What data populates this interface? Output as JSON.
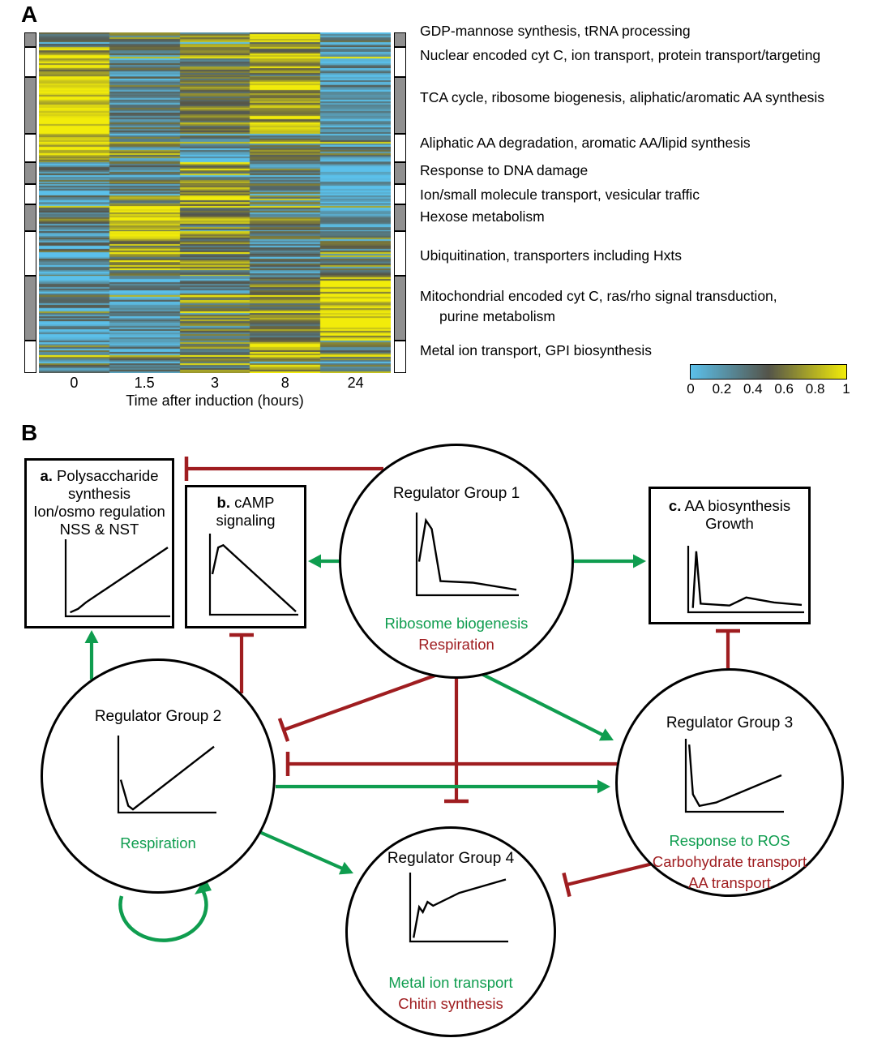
{
  "colors": {
    "activation": "#0f9d4f",
    "inhibition": "#9f1d20",
    "heat_low": "#5bc0ea",
    "heat_mid": "#54544a",
    "heat_high": "#f2ec0a",
    "sidebar_gray": "#909090"
  },
  "panelA": {
    "label": "A",
    "xlabel": "Time after induction (hours)",
    "time_ticks": [
      "0",
      "1.5",
      "3",
      "8",
      "24"
    ],
    "colorbar_ticks": [
      "0",
      "0.2",
      "0.4",
      "0.6",
      "0.8",
      "1"
    ],
    "clusters": [
      {
        "label": "GDP-mannose synthesis, tRNA processing",
        "shade": "gray",
        "profile": [
          0.45,
          0.55,
          0.62,
          0.8,
          0.15
        ],
        "noise": 0.3
      },
      {
        "label": "Nuclear encoded cyt C, ion transport, protein transport/targeting",
        "shade": "white",
        "profile": [
          0.85,
          0.25,
          0.5,
          0.65,
          0.15
        ],
        "noise": 0.28
      },
      {
        "label": "TCA cycle, ribosome biogenesis, aliphatic/aromatic AA synthesis",
        "shade": "gray",
        "profile": [
          0.95,
          0.3,
          0.55,
          0.75,
          0.12
        ],
        "noise": 0.22
      },
      {
        "label": "Aliphatic AA degradation, aromatic AA/lipid synthesis",
        "shade": "white",
        "profile": [
          0.88,
          0.5,
          0.22,
          0.6,
          0.3
        ],
        "noise": 0.3
      },
      {
        "label": "Response to DNA damage",
        "shade": "gray",
        "profile": [
          0.35,
          0.5,
          0.75,
          0.45,
          0.15
        ],
        "noise": 0.3
      },
      {
        "label": "Ion/small molecule transport, vesicular traffic",
        "shade": "white",
        "profile": [
          0.18,
          0.45,
          0.85,
          0.5,
          0.12
        ],
        "noise": 0.28
      },
      {
        "label": "Hexose metabolism",
        "shade": "gray",
        "profile": [
          0.3,
          0.92,
          0.5,
          0.35,
          0.1
        ],
        "noise": 0.25
      },
      {
        "label": "Ubiquitination, transporters including Hxts",
        "shade": "white",
        "profile": [
          0.15,
          0.75,
          0.55,
          0.25,
          0.45
        ],
        "noise": 0.35
      },
      {
        "label": "Mitochondrial encoded cyt C, ras/rho signal transduction,",
        "label2": "purine metabolism",
        "shade": "gray",
        "profile": [
          0.15,
          0.15,
          0.45,
          0.55,
          0.92
        ],
        "noise": 0.3
      },
      {
        "label": "Metal ion transport, GPI biosynthesis",
        "shade": "white",
        "profile": [
          0.35,
          0.18,
          0.6,
          0.78,
          0.55
        ],
        "noise": 0.35
      }
    ]
  },
  "panelB": {
    "label": "B",
    "groups": [
      {
        "id": "group1",
        "title": "Regulator Group 1",
        "sparkline": [
          [
            0,
            0.4
          ],
          [
            0.07,
            0.93
          ],
          [
            0.13,
            0.82
          ],
          [
            0.22,
            0.15
          ],
          [
            0.55,
            0.13
          ],
          [
            1,
            0.04
          ]
        ],
        "functions": [
          {
            "text": "Ribosome biogenesis",
            "role": "activated"
          },
          {
            "text": "Respiration",
            "role": "repressed"
          }
        ]
      },
      {
        "id": "group2",
        "title": "Regulator Group 2",
        "sparkline": [
          [
            0,
            0.42
          ],
          [
            0.08,
            0.06
          ],
          [
            0.13,
            0.01
          ],
          [
            1,
            0.88
          ]
        ],
        "functions": [
          {
            "text": "Respiration",
            "role": "activated"
          }
        ]
      },
      {
        "id": "group3",
        "title": "Regulator Group 3",
        "sparkline": [
          [
            0.01,
            0.95
          ],
          [
            0.05,
            0.22
          ],
          [
            0.12,
            0.05
          ],
          [
            0.3,
            0.1
          ],
          [
            1,
            0.5
          ]
        ],
        "functions": [
          {
            "text": "Response to ROS",
            "role": "activated"
          },
          {
            "text": "Carbohydrate transport",
            "role": "repressed"
          },
          {
            "text": "AA transport",
            "role": "repressed"
          }
        ]
      },
      {
        "id": "group4",
        "title": "Regulator Group 4",
        "sparkline": [
          [
            0.01,
            0.02
          ],
          [
            0.07,
            0.5
          ],
          [
            0.11,
            0.42
          ],
          [
            0.16,
            0.58
          ],
          [
            0.22,
            0.52
          ],
          [
            0.5,
            0.72
          ],
          [
            1,
            0.93
          ]
        ],
        "functions": [
          {
            "text": "Metal ion transport",
            "role": "activated"
          },
          {
            "text": "Chitin synthesis",
            "role": "repressed"
          }
        ]
      }
    ],
    "boxes": [
      {
        "id": "box_a",
        "tag": "a.",
        "lines": [
          "Polysaccharide",
          "synthesis",
          "Ion/osmo regulation",
          "NSS & NST"
        ],
        "sparkline": [
          [
            0.02,
            0.02
          ],
          [
            0.1,
            0.07
          ],
          [
            0.18,
            0.16
          ],
          [
            1,
            0.92
          ]
        ]
      },
      {
        "id": "box_b",
        "tag": "b.",
        "lines": [
          "cAMP",
          "signaling"
        ],
        "sparkline": [
          [
            0,
            0.5
          ],
          [
            0.07,
            0.85
          ],
          [
            0.13,
            0.88
          ],
          [
            1,
            0.01
          ]
        ]
      },
      {
        "id": "box_c",
        "tag": "c.",
        "lines": [
          "AA biosynthesis",
          "Growth"
        ],
        "sparkline": [
          [
            0.02,
            0.03
          ],
          [
            0.05,
            0.95
          ],
          [
            0.09,
            0.1
          ],
          [
            0.35,
            0.07
          ],
          [
            0.5,
            0.2
          ],
          [
            0.75,
            0.12
          ],
          [
            1,
            0.08
          ]
        ]
      }
    ],
    "edges": [
      {
        "from": "group1",
        "to": "box_a",
        "type": "inhibition"
      },
      {
        "from": "group1",
        "to": "box_b",
        "type": "activation"
      },
      {
        "from": "group1",
        "to": "box_c",
        "type": "activation"
      },
      {
        "from": "group2",
        "to": "box_a",
        "type": "activation"
      },
      {
        "from": "group2",
        "to": "box_b",
        "type": "inhibition"
      },
      {
        "from": "group1",
        "to": "group2",
        "type": "inhibition"
      },
      {
        "from": "group1",
        "to": "group3",
        "type": "activation"
      },
      {
        "from": "group1",
        "to": "group4",
        "type": "inhibition"
      },
      {
        "from": "group3",
        "to": "group2",
        "type": "inhibition"
      },
      {
        "from": "group2",
        "to": "group3",
        "type": "activation"
      },
      {
        "from": "group2",
        "to": "group4",
        "type": "activation"
      },
      {
        "from": "group3",
        "to": "group4",
        "type": "inhibition"
      },
      {
        "from": "group3",
        "to": "box_c",
        "type": "inhibition"
      },
      {
        "from": "group2",
        "to": "group2",
        "type": "activation",
        "self": true
      }
    ]
  }
}
